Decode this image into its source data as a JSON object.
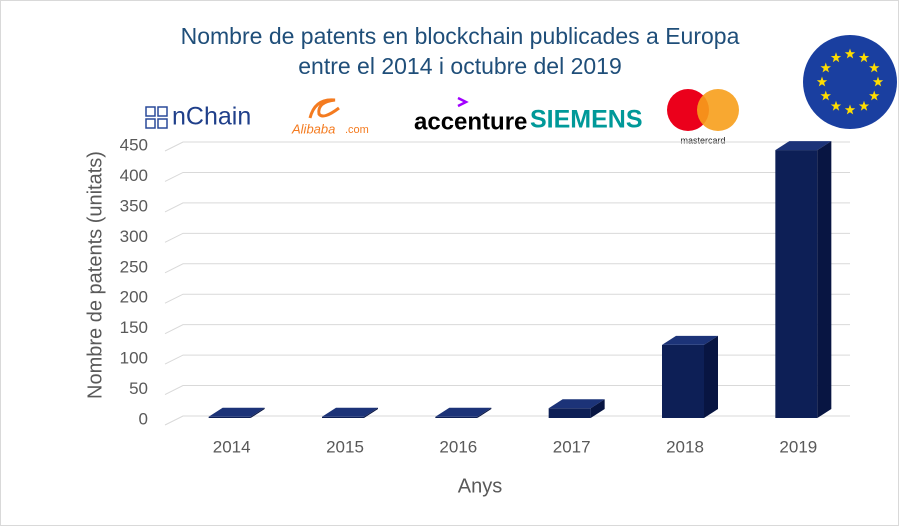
{
  "chart_data": {
    "type": "bar3d",
    "title": "Nombre de patents en blockchain publicades a Europa",
    "subtitle": "entre el 2014 i octubre del 2019",
    "logos": [
      "nChain",
      "Alibaba",
      ".com",
      "accenture",
      "SIEMENS",
      "mastercard"
    ],
    "x_label": "Anys",
    "y_label": "Nombre de patents (unitats)",
    "categories": [
      "2014",
      "2015",
      "2016",
      "2017",
      "2018",
      "2019"
    ],
    "values": [
      2,
      2,
      2,
      16,
      120,
      440
    ],
    "color": "#0d1f56",
    "ylim": [
      0,
      450
    ],
    "yticks": [
      0,
      50,
      100,
      150,
      200,
      250,
      300,
      350,
      400,
      450
    ],
    "grid": true
  }
}
